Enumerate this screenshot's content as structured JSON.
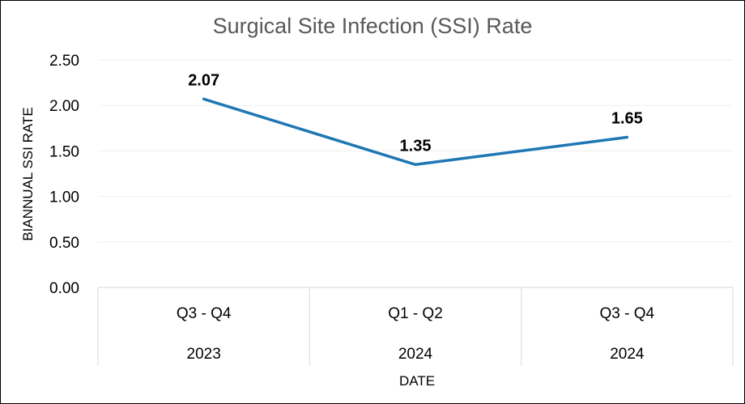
{
  "chart_data": {
    "type": "line",
    "title": "Surgical Site Infection (SSI) Rate",
    "xlabel": "DATE",
    "ylabel": "BIANNUAL SSI RATE",
    "categories": [
      {
        "period": "Q3 - Q4",
        "year": "2023"
      },
      {
        "period": "Q1 - Q2",
        "year": "2024"
      },
      {
        "period": "Q3 - Q4",
        "year": "2024"
      }
    ],
    "series": [
      {
        "values": [
          2.07,
          1.35,
          1.65
        ],
        "data_labels": [
          "2.07",
          "1.35",
          "1.65"
        ],
        "color": "#1f77b4"
      }
    ],
    "ylim": [
      0,
      2.5
    ],
    "yticks": [
      "0.00",
      "0.50",
      "1.00",
      "1.50",
      "2.00",
      "2.50"
    ],
    "grid": true,
    "legend": "none"
  }
}
